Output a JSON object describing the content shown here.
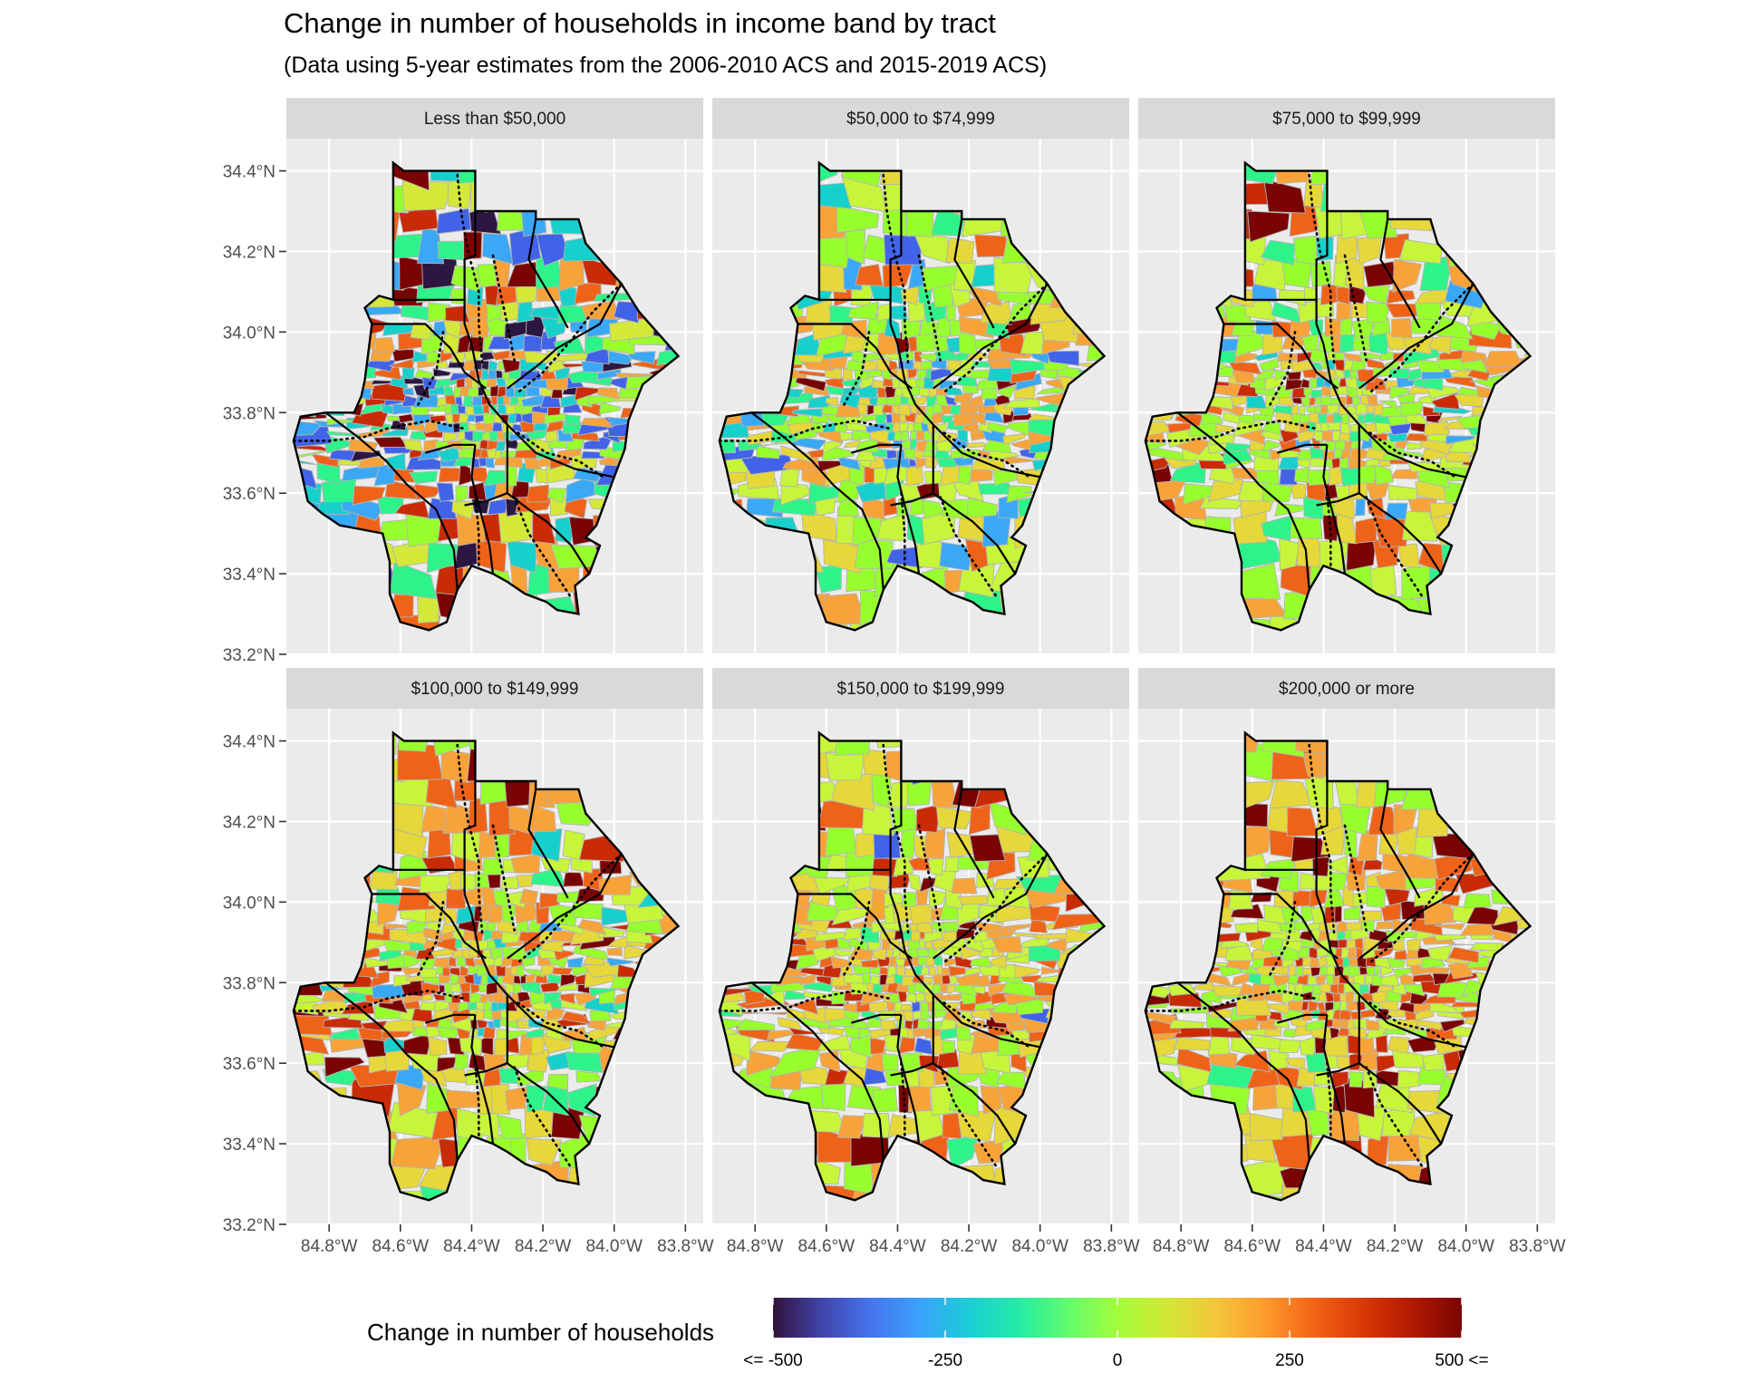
{
  "title": "Change in number of households in income band by tract",
  "subtitle": "(Data using 5-year estimates from the 2006-2010 ACS and 2015-2019 ACS)",
  "panels": [
    {
      "label": "Less than $50,000",
      "seed": 11,
      "palette": [
        "#2b1742",
        "#4163e8",
        "#3aa8f5",
        "#17d0cb",
        "#2ef38a",
        "#98ff2e",
        "#d4e83a",
        "#f7a33a",
        "#ef6319",
        "#c92b05",
        "#7a0403"
      ],
      "weights": [
        6,
        8,
        9,
        9,
        11,
        12,
        10,
        11,
        9,
        7,
        4
      ]
    },
    {
      "label": "$50,000 to $74,999",
      "seed": 23,
      "palette": [
        "#4163e8",
        "#3aa8f5",
        "#17d0cb",
        "#2ef38a",
        "#98ff2e",
        "#c6f53a",
        "#e6d73a",
        "#f7a33a",
        "#ef6319",
        "#7a0403"
      ],
      "weights": [
        2,
        4,
        5,
        12,
        22,
        15,
        13,
        12,
        6,
        3
      ]
    },
    {
      "label": "$75,000 to $99,999",
      "seed": 37,
      "palette": [
        "#4163e8",
        "#3aa8f5",
        "#17d0cb",
        "#2ef38a",
        "#98ff2e",
        "#c6f53a",
        "#e6d73a",
        "#f7a33a",
        "#ef6319",
        "#c92b05",
        "#7a0403"
      ],
      "weights": [
        1,
        2,
        3,
        8,
        24,
        16,
        12,
        10,
        7,
        5,
        3
      ]
    },
    {
      "label": "$100,000 to $149,999",
      "seed": 51,
      "palette": [
        "#3aa8f5",
        "#17d0cb",
        "#2ef38a",
        "#98ff2e",
        "#c6f53a",
        "#e6d73a",
        "#f7a33a",
        "#ef6319",
        "#c92b05",
        "#7a0403"
      ],
      "weights": [
        2,
        3,
        6,
        16,
        14,
        14,
        16,
        12,
        8,
        6
      ]
    },
    {
      "label": "$150,000 to $199,999",
      "seed": 67,
      "palette": [
        "#4163e8",
        "#2ef38a",
        "#98ff2e",
        "#c6f53a",
        "#e6d73a",
        "#f7a33a",
        "#ef6319",
        "#c92b05",
        "#7a0403"
      ],
      "weights": [
        1,
        3,
        20,
        20,
        20,
        16,
        10,
        6,
        3
      ]
    },
    {
      "label": "$200,000 or more",
      "seed": 83,
      "palette": [
        "#2ef38a",
        "#98ff2e",
        "#c6f53a",
        "#e6d73a",
        "#f7a33a",
        "#ef6319",
        "#c92b05",
        "#7a0403"
      ],
      "weights": [
        2,
        18,
        16,
        18,
        16,
        12,
        10,
        8
      ]
    }
  ],
  "axes": {
    "y_ticks": [
      {
        "value": 34.4,
        "label": "34.4°N"
      },
      {
        "value": 34.2,
        "label": "34.2°N"
      },
      {
        "value": 34.0,
        "label": "34.0°N"
      },
      {
        "value": 33.8,
        "label": "33.8°N"
      },
      {
        "value": 33.6,
        "label": "33.6°N"
      },
      {
        "value": 33.4,
        "label": "33.4°N"
      },
      {
        "value": 33.2,
        "label": "33.2°N"
      }
    ],
    "x_ticks": [
      {
        "value": -84.8,
        "label": "84.8°W"
      },
      {
        "value": -84.6,
        "label": "84.6°W"
      },
      {
        "value": -84.4,
        "label": "84.4°W"
      },
      {
        "value": -84.2,
        "label": "84.2°W"
      },
      {
        "value": -84.0,
        "label": "84.0°W"
      },
      {
        "value": -83.8,
        "label": "83.8°W"
      }
    ],
    "lat_range": [
      33.2,
      34.48
    ],
    "lon_range": [
      -84.92,
      -83.75
    ]
  },
  "legend": {
    "title": "Change in number of households",
    "ticks": [
      {
        "value": -500,
        "label": "<= -500"
      },
      {
        "value": -250,
        "label": "-250"
      },
      {
        "value": 0,
        "label": "0"
      },
      {
        "value": 250,
        "label": "250"
      },
      {
        "value": 500,
        "label": "500 <="
      }
    ],
    "range": [
      -500,
      500
    ],
    "colors": [
      "#30123b",
      "#4145ab",
      "#4675ed",
      "#39a2fc",
      "#1bcfd4",
      "#24eca6",
      "#61fc6c",
      "#a4fc3b",
      "#d1e834",
      "#f3c63a",
      "#fe9b2d",
      "#f36315",
      "#d93806",
      "#b11901",
      "#7a0403"
    ]
  },
  "colors": {
    "panel_bg": "#ebebeb",
    "strip_bg": "#d9d9d9",
    "grid": "#ffffff",
    "tract_border": "#b3b3b3",
    "county_border": "#000000",
    "axis_text": "#4d4d4d"
  }
}
